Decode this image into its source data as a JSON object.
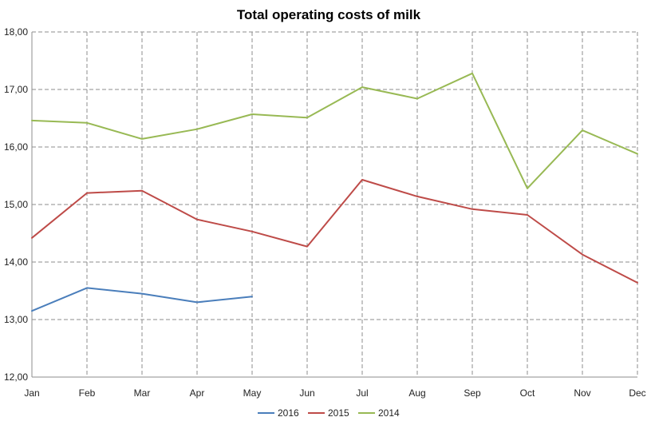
{
  "chart_data": {
    "type": "line",
    "title": "Total operating costs of milk",
    "xlabel": "",
    "ylabel": "",
    "categories": [
      "Jan",
      "Feb",
      "Mar",
      "Apr",
      "May",
      "Jun",
      "Jul",
      "Aug",
      "Sep",
      "Oct",
      "Nov",
      "Dec"
    ],
    "ylim": [
      12,
      18
    ],
    "yticks": [
      "12,00",
      "13,00",
      "14,00",
      "15,00",
      "16,00",
      "17,00",
      "18,00"
    ],
    "grid": true,
    "legend_position": "bottom",
    "series": [
      {
        "name": "2016",
        "color": "#4a7ebb",
        "values": [
          13.15,
          13.55,
          13.45,
          13.3,
          13.4,
          null,
          null,
          null,
          null,
          null,
          null,
          null
        ]
      },
      {
        "name": "2015",
        "color": "#be4b48",
        "values": [
          14.42,
          15.2,
          15.24,
          14.74,
          14.53,
          14.27,
          15.43,
          15.14,
          14.92,
          14.82,
          14.13,
          13.64
        ]
      },
      {
        "name": "2014",
        "color": "#98b954",
        "values": [
          16.46,
          16.42,
          16.14,
          16.31,
          16.57,
          16.51,
          17.04,
          16.84,
          17.28,
          15.28,
          16.29,
          15.88
        ]
      }
    ]
  }
}
